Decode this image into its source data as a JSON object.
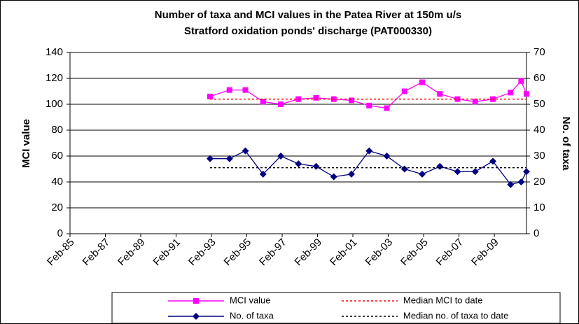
{
  "chart_data": {
    "type": "line",
    "title": [
      "Number of taxa and MCI values in the Patea River at 150m u/s",
      "Stratford oxidation ponds' discharge (PAT000330)"
    ],
    "y_label": "MCI value",
    "y2_label": "No. of taxa",
    "xlim": [
      1985.08,
      2010.9
    ],
    "xticks": [
      {
        "value": 1985.08,
        "label": "Feb-85"
      },
      {
        "value": 1987.08,
        "label": "Feb-87"
      },
      {
        "value": 1989.08,
        "label": "Feb-89"
      },
      {
        "value": 1991.08,
        "label": "Feb-91"
      },
      {
        "value": 1993.08,
        "label": "Feb-93"
      },
      {
        "value": 1995.08,
        "label": "Feb-95"
      },
      {
        "value": 1997.08,
        "label": "Feb-97"
      },
      {
        "value": 1999.08,
        "label": "Feb-99"
      },
      {
        "value": 2001.08,
        "label": "Feb-01"
      },
      {
        "value": 2003.08,
        "label": "Feb-03"
      },
      {
        "value": 2005.08,
        "label": "Feb-05"
      },
      {
        "value": 2007.08,
        "label": "Feb-07"
      },
      {
        "value": 2009.08,
        "label": "Feb-09"
      }
    ],
    "ylim": [
      0,
      140
    ],
    "yticks": [
      0,
      20,
      40,
      60,
      80,
      100,
      120,
      140
    ],
    "y2lim": [
      0,
      70
    ],
    "y2ticks": [
      0,
      10,
      20,
      30,
      40,
      50,
      60,
      70
    ],
    "grid": true,
    "series": [
      {
        "name": "MCI value",
        "color": "#ff00ff",
        "marker": "square",
        "dash": false,
        "x": [
          1993.0,
          1994.1,
          1995.0,
          1996.0,
          1997.0,
          1998.0,
          1999.0,
          2000.0,
          2001.0,
          2002.0,
          2003.0,
          2004.0,
          2005.0,
          2006.0,
          2007.0,
          2008.0,
          2009.0,
          2010.0,
          2010.6,
          2010.9
        ],
        "values": [
          106,
          111,
          111,
          102,
          100,
          104,
          105,
          104,
          103,
          99,
          97,
          110,
          117,
          108,
          104,
          102,
          104,
          109,
          118,
          108
        ]
      },
      {
        "name": "Median MCI to date",
        "color": "#ff0000",
        "marker": "none",
        "dash": true,
        "x": [
          1993.0,
          2010.9
        ],
        "values": [
          104,
          104
        ]
      },
      {
        "name": "No. of taxa",
        "color": "#000080",
        "marker": "diamond",
        "dash": false,
        "axis": "y2",
        "x": [
          1993.0,
          1994.1,
          1995.0,
          1996.0,
          1997.0,
          1998.0,
          1999.0,
          2000.0,
          2001.0,
          2002.0,
          2003.0,
          2004.0,
          2005.0,
          2006.0,
          2007.0,
          2008.0,
          2009.0,
          2010.0,
          2010.6,
          2010.9
        ],
        "values": [
          29,
          29,
          32,
          23,
          30,
          27,
          26,
          22,
          23,
          32,
          30,
          25,
          23,
          26,
          24,
          24,
          28,
          19,
          20,
          24
        ]
      },
      {
        "name": "Median no. of taxa to date",
        "color": "#000000",
        "marker": "none",
        "dash": true,
        "axis": "y2",
        "x": [
          1993.0,
          2010.9
        ],
        "values": [
          25.5,
          25.5
        ]
      }
    ]
  }
}
